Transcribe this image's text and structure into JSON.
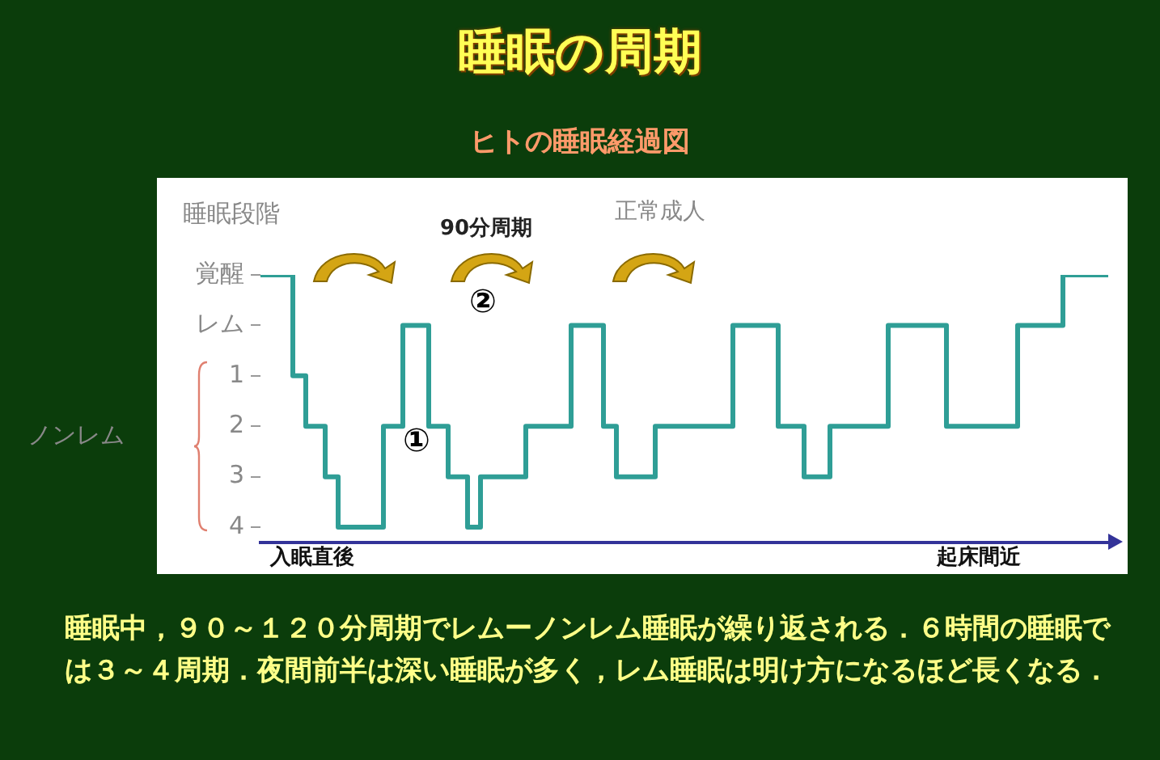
{
  "chart_data": {
    "type": "step",
    "title": "睡眠の周期",
    "subtitle": "ヒトの睡眠経過図",
    "ylabel": "睡眠段階",
    "categories": [
      null,
      null,
      null,
      null,
      null,
      null,
      null,
      null,
      "入眠直後",
      null,
      null,
      null,
      null,
      null,
      null,
      null,
      null,
      null,
      null,
      null,
      null,
      null,
      null,
      null,
      null,
      null,
      null,
      null,
      null,
      null,
      null,
      null,
      null,
      null,
      null,
      null,
      null,
      null,
      null,
      null,
      null,
      null,
      null,
      null,
      null,
      null,
      null,
      null,
      null,
      null,
      null,
      null,
      null,
      null,
      null,
      null,
      null,
      null,
      null,
      null,
      null,
      null,
      null,
      null,
      null,
      null,
      null,
      null,
      null,
      null,
      null,
      null,
      null,
      null,
      null,
      null,
      null,
      null,
      null,
      null,
      null,
      null,
      null,
      null,
      null,
      null,
      null,
      null,
      null,
      null,
      null,
      null,
      null,
      null,
      null,
      null,
      null,
      null,
      null,
      null,
      null,
      null,
      null,
      null,
      null,
      null,
      null,
      null,
      null,
      null,
      null,
      "起床間近",
      null,
      null,
      null,
      null,
      null,
      null,
      null,
      null,
      null,
      null,
      null,
      null,
      null,
      null,
      null,
      null,
      null,
      null,
      null,
      null
    ],
    "series": [
      {
        "color": "#2f9e96",
        "values": [
          -1,
          -1,
          -1,
          -1,
          -1,
          1,
          1,
          2,
          2,
          2,
          3,
          3,
          4,
          4,
          4,
          4,
          4,
          4,
          4,
          2,
          2,
          2,
          0,
          0,
          0,
          0,
          2,
          2,
          2,
          3,
          3,
          3,
          4,
          4,
          3,
          3,
          3,
          3,
          3,
          3,
          3,
          2,
          2,
          2,
          2,
          2,
          2,
          2,
          0,
          0,
          0,
          0,
          0,
          2,
          2,
          3,
          3,
          3,
          3,
          3,
          3,
          2,
          2,
          2,
          2,
          2,
          2,
          2,
          2,
          2,
          2,
          2,
          2,
          0,
          0,
          0,
          0,
          0,
          0,
          0,
          2,
          2,
          2,
          2,
          3,
          3,
          3,
          3,
          2,
          2,
          2,
          2,
          2,
          2,
          2,
          2,
          2,
          0,
          0,
          0,
          0,
          0,
          0,
          0,
          0,
          0,
          2,
          2,
          2,
          2,
          2,
          2,
          2,
          2,
          2,
          2,
          2,
          0,
          0,
          0,
          0,
          0,
          0,
          0,
          -1,
          -1,
          -1,
          -1,
          -1,
          -1,
          -1,
          -1
        ]
      }
    ],
    "ylim": [
      4.3,
      -1
    ],
    "yticks": [
      {
        "value": -1,
        "label": "覚醒"
      },
      {
        "value": 0,
        "label": "レム"
      },
      1,
      2,
      3,
      4
    ],
    "grid": false,
    "legend": false,
    "marker": "none",
    "line_style": "solid",
    "annotations": [
      "①",
      "②",
      "90分周期",
      "正常成人",
      "ノンレム",
      "睡眠中，９０～１２０分周期でレムーノンレム睡眠が繰り返される．６時間の睡眠では３～４周期．夜間前半は深い睡眠が多く，レム睡眠は明け方になるほど長くなる．"
    ]
  }
}
